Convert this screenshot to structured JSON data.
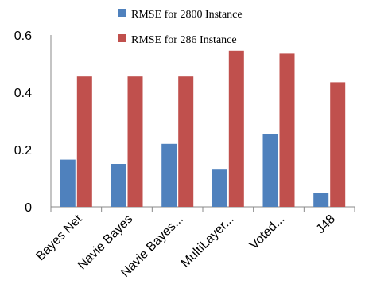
{
  "chart_data": {
    "type": "bar",
    "categories": [
      "Bayes Net",
      "Navie Bayes",
      "Navie Bayes...",
      "MultiLayer...",
      "Voted...",
      "J48"
    ],
    "series": [
      {
        "name": "RMSE for 2800 Instance",
        "color": "#4f81bd",
        "values": [
          0.165,
          0.15,
          0.22,
          0.13,
          0.255,
          0.05
        ]
      },
      {
        "name": "RMSE for 286 Instance",
        "color": "#c0504d",
        "values": [
          0.455,
          0.455,
          0.455,
          0.545,
          0.535,
          0.435
        ]
      }
    ],
    "yticks": [
      "0",
      "0.2",
      "0.4",
      "0.6"
    ],
    "ylim": [
      0,
      0.6
    ],
    "grid": false,
    "legend_position": "top-right"
  }
}
